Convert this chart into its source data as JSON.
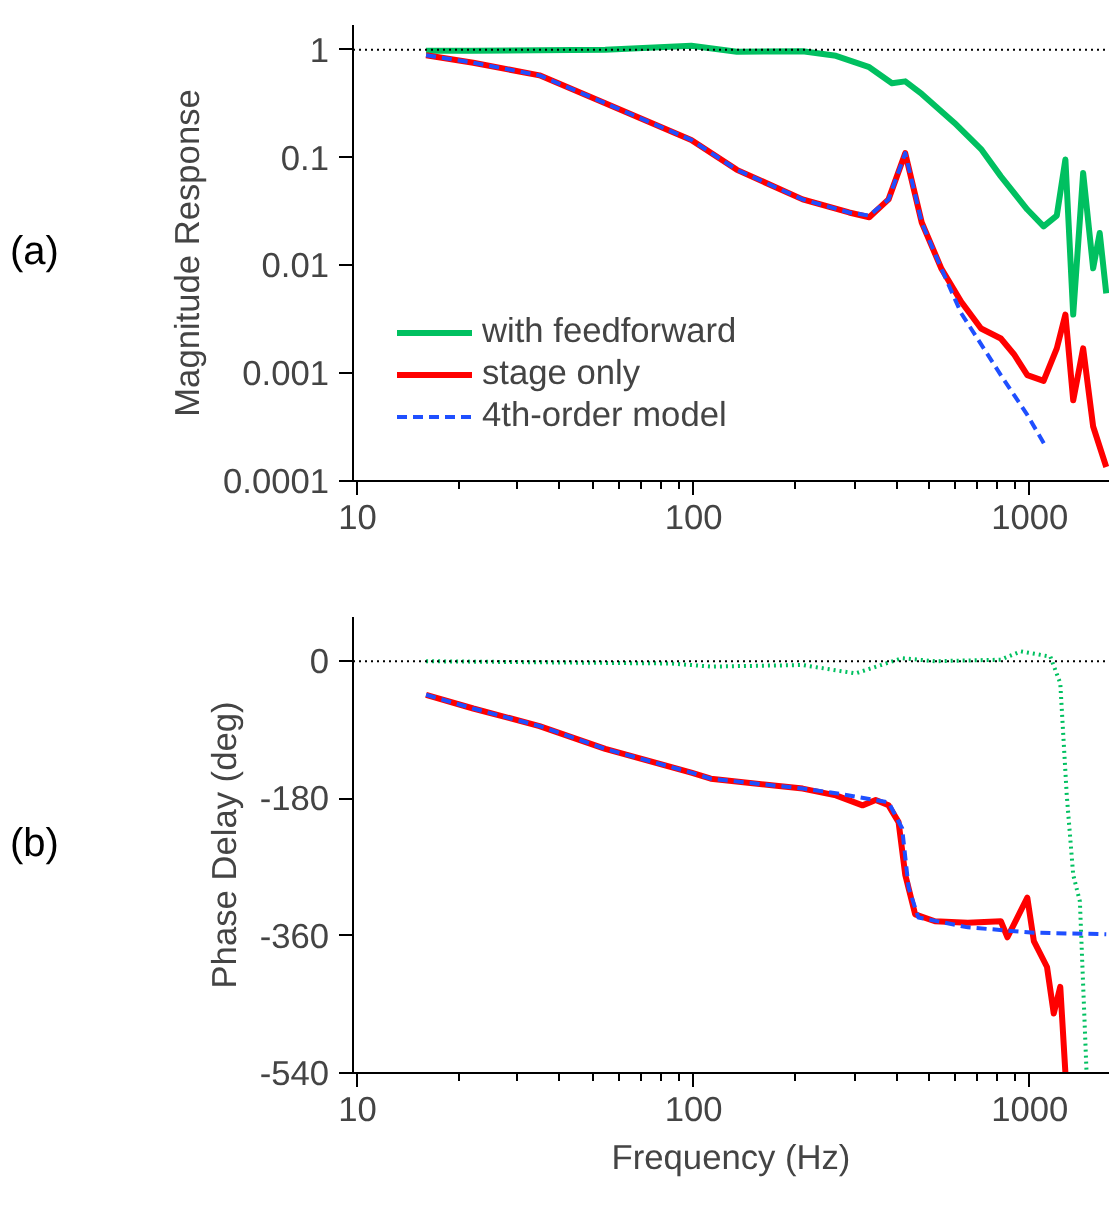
{
  "chart_data": [
    {
      "type": "line",
      "ylabel": "Magnitude Response",
      "annotations": [
        "(a)"
      ],
      "log": "xy",
      "xlim": [
        9.7,
        1720
      ],
      "ylim": [
        0.0001,
        1.7
      ],
      "xticks": [
        10,
        100,
        1000
      ],
      "yticks": [
        1,
        0.1,
        0.01,
        0.001,
        0.0001
      ],
      "grid": false,
      "legend": "bottom left",
      "ref_lines": [
        {
          "axis": "y",
          "value": 1,
          "color": "#000000",
          "line_style": "dotted"
        }
      ],
      "series": [
        {
          "name": "with feedforward",
          "color": "#00c060",
          "line_style": "solid",
          "x": [
            16.0,
            22.1,
            34.8,
            54.6,
            98.4,
            134.5,
            211,
            265,
            333,
            389,
            426,
            477,
            597,
            716,
            820,
            983,
            1099,
            1203,
            1276,
            1346,
            1441,
            1543,
            1614,
            1688
          ],
          "values": [
            0.98,
            0.98,
            0.99,
            1.0,
            1.09,
            0.96,
            0.97,
            0.88,
            0.69,
            0.49,
            0.51,
            0.39,
            0.21,
            0.12,
            0.067,
            0.033,
            0.023,
            0.029,
            0.096,
            0.0035,
            0.072,
            0.0094,
            0.02,
            0.0055
          ]
        },
        {
          "name": "stage only",
          "color": "#ff0000",
          "line_style": "solid",
          "x": [
            16.0,
            22.1,
            34.8,
            54.6,
            98.4,
            134.5,
            211,
            290,
            333,
            380,
            426,
            477,
            546,
            625,
            716,
            820,
            897,
            983,
            1099,
            1203,
            1276,
            1346,
            1441,
            1543,
            1688
          ],
          "values": [
            0.89,
            0.76,
            0.58,
            0.32,
            0.146,
            0.077,
            0.041,
            0.031,
            0.028,
            0.041,
            0.11,
            0.025,
            0.0093,
            0.0046,
            0.0026,
            0.0021,
            0.0015,
            0.00096,
            0.00085,
            0.0017,
            0.0035,
            0.00056,
            0.0017,
            0.00032,
            0.000135
          ]
        },
        {
          "name": "4th-order model",
          "color": "#1f4fff",
          "line_style": "dashed",
          "x": [
            16.0,
            22.1,
            34.8,
            54.6,
            98.4,
            134.5,
            211,
            290,
            333,
            380,
            426,
            477,
            546,
            625,
            820,
            983,
            1114
          ],
          "values": [
            0.89,
            0.76,
            0.58,
            0.32,
            0.146,
            0.077,
            0.041,
            0.031,
            0.029,
            0.041,
            0.11,
            0.025,
            0.0093,
            0.0036,
            0.00096,
            0.00041,
            0.00021
          ]
        }
      ]
    },
    {
      "type": "line",
      "xlabel": "Frequency (Hz)",
      "ylabel": "Phase Delay (deg)",
      "annotations": [
        "(b)"
      ],
      "log": "x",
      "xlim": [
        9.7,
        1720
      ],
      "ylim": [
        -540,
        58
      ],
      "xticks": [
        10,
        100,
        1000
      ],
      "yticks": [
        0,
        -180,
        -360,
        -540
      ],
      "grid": false,
      "ref_lines": [
        {
          "axis": "y",
          "value": 0,
          "color": "#000000",
          "line_style": "dotted"
        }
      ],
      "series": [
        {
          "color": "#00c060",
          "line_style": "dotted",
          "x": [
            16.0,
            85.8,
            112.5,
            211,
            303,
            417,
            522,
            820,
            940,
            1151,
            1232,
            1288,
            1346,
            1409,
            1475
          ],
          "values": [
            0,
            -3,
            -7,
            -5,
            -16,
            4,
            0,
            2,
            13,
            6,
            -29,
            -176,
            -280,
            -315,
            -540
          ]
        },
        {
          "color": "#ff0000",
          "line_style": "solid",
          "x": [
            16.0,
            22.1,
            34.8,
            54.6,
            98.4,
            112.5,
            211,
            265,
            318,
            348,
            380,
            407,
            426,
            456,
            522,
            654,
            820,
            858,
            983,
            1028,
            1125,
            1178,
            1232,
            1276
          ],
          "values": [
            -44,
            -62,
            -85,
            -115,
            -146,
            -154,
            -167,
            -176,
            -189,
            -182,
            -189,
            -211,
            -280,
            -332,
            -341,
            -343,
            -341,
            -362,
            -310,
            -367,
            -401,
            -462,
            -427,
            -540
          ]
        },
        {
          "color": "#1f4fff",
          "line_style": "dashed",
          "x": [
            16.0,
            22.1,
            34.8,
            54.6,
            98.4,
            112.5,
            211,
            265,
            380,
            417,
            436,
            466,
            654,
            1028,
            1688
          ],
          "values": [
            -44,
            -62,
            -85,
            -115,
            -146,
            -154,
            -167,
            -173,
            -185,
            -219,
            -297,
            -336,
            -349,
            -356,
            -358
          ]
        }
      ]
    }
  ]
}
